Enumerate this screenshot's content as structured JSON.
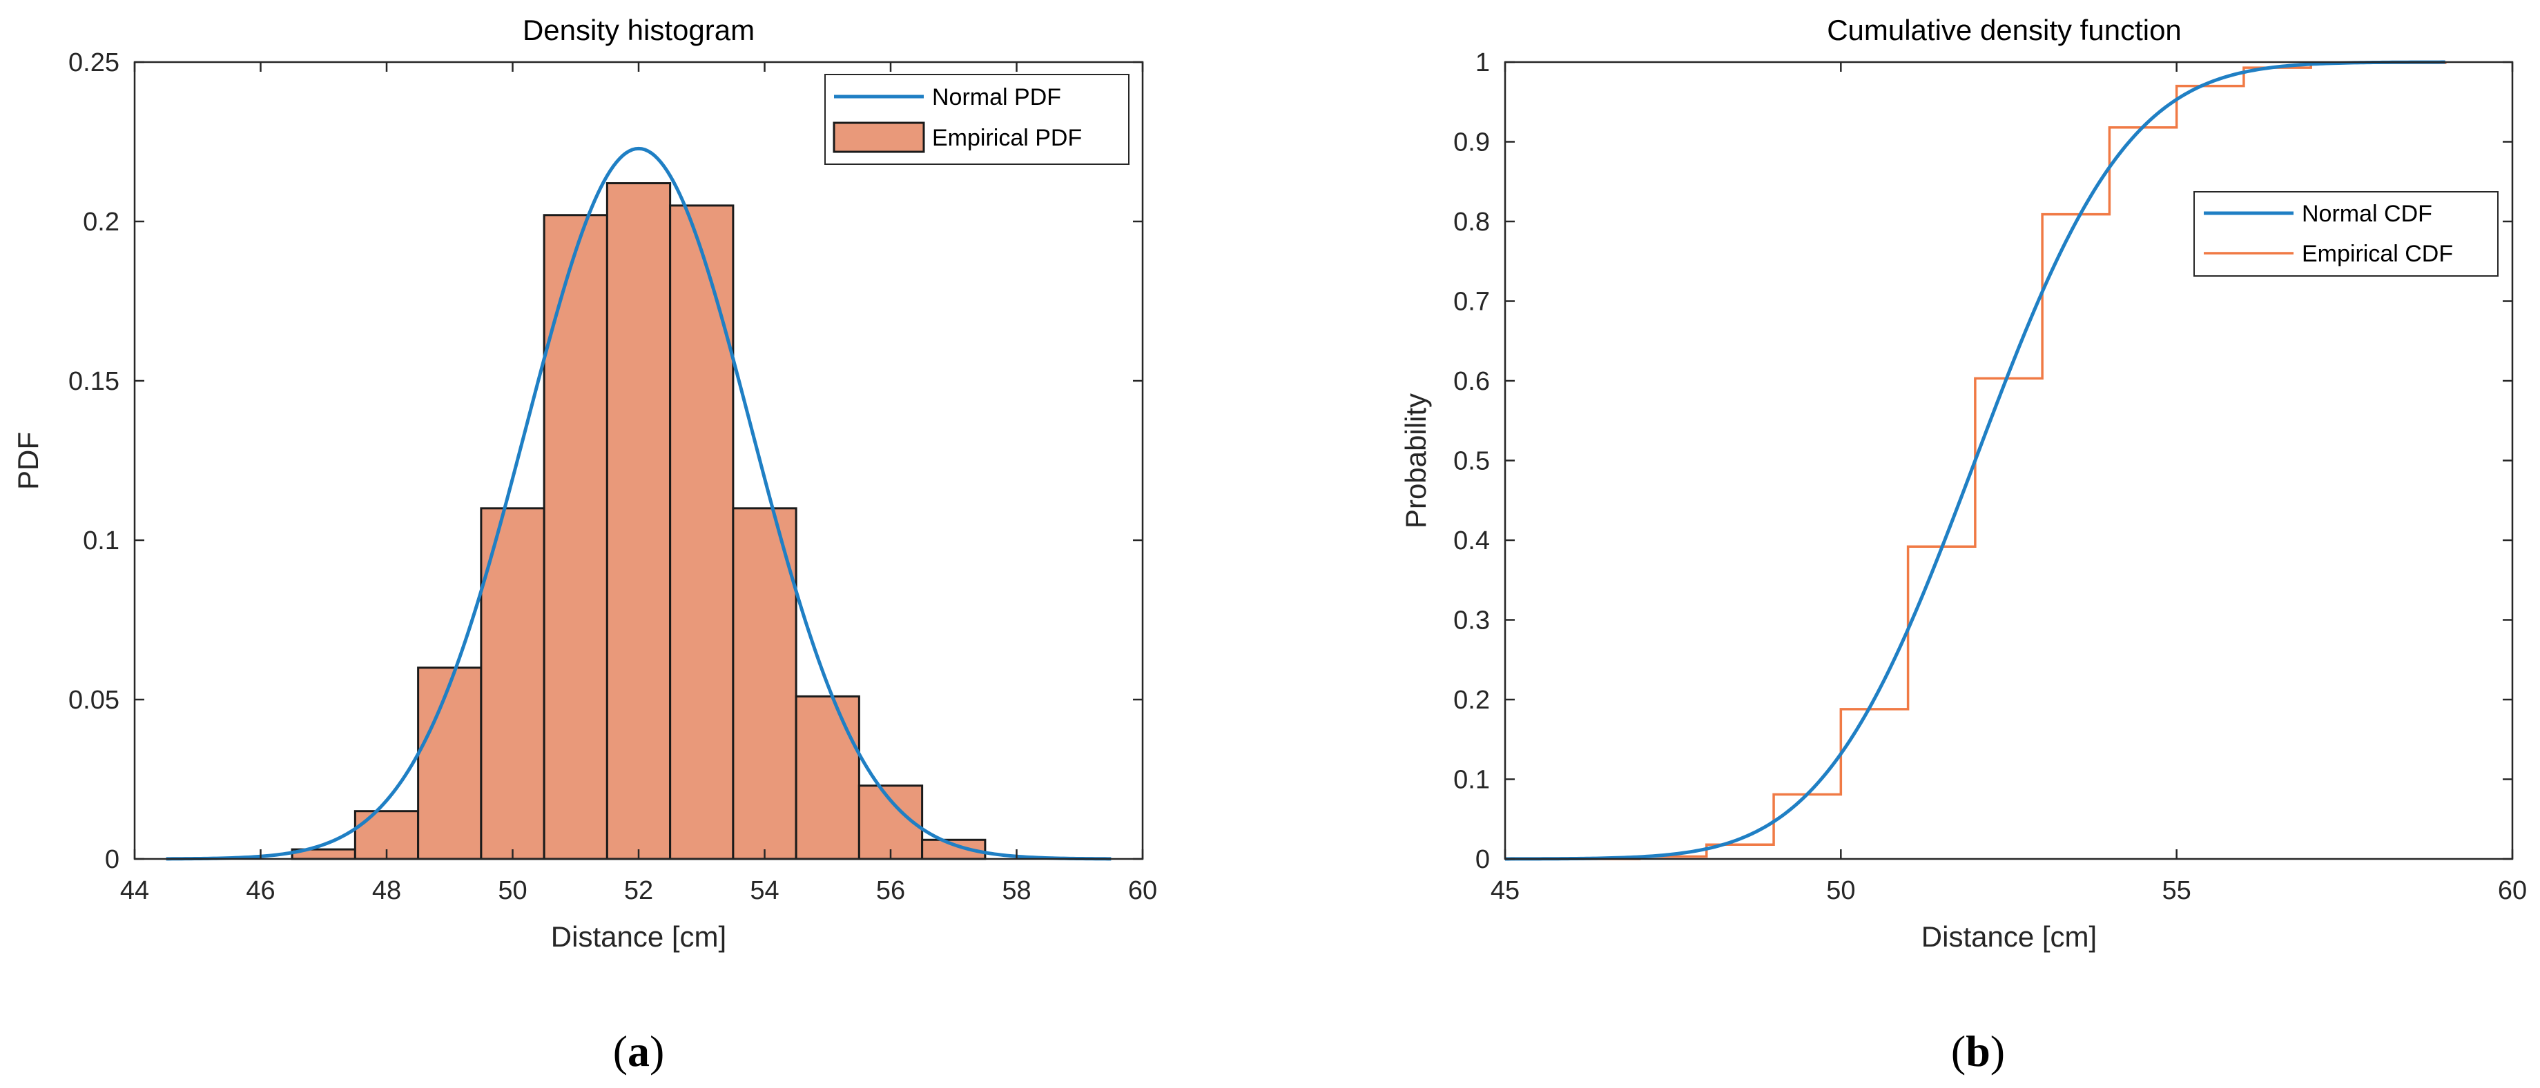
{
  "chart_data": [
    {
      "type": "bar",
      "panel": "a",
      "caption": {
        "open": "(",
        "letter": "a",
        "close": ")"
      },
      "title": "Density histogram",
      "xlabel": "Distance [cm]",
      "ylabel": "PDF",
      "xlim": [
        44,
        60
      ],
      "ylim": [
        0,
        0.25
      ],
      "xticks": [
        44,
        46,
        48,
        50,
        52,
        54,
        56,
        58,
        60
      ],
      "yticks": [
        0,
        0.05,
        0.1,
        0.15,
        0.2,
        0.25
      ],
      "xtick_labels": [
        "44",
        "46",
        "48",
        "50",
        "52",
        "54",
        "56",
        "58",
        "60"
      ],
      "ytick_labels": [
        "0",
        "0.05",
        "0.1",
        "0.15",
        "0.2",
        "0.25"
      ],
      "legend": {
        "placement": "top-right",
        "entries": [
          "Normal PDF",
          "Empirical PDF"
        ]
      },
      "colors": {
        "bar_fill": "#E9997A",
        "bar_edge": "#1A1A1A",
        "line": "#1F7FC4",
        "axis": "#262626"
      },
      "bins": [
        {
          "left": 46.5,
          "right": 47.5,
          "value": 0.003
        },
        {
          "left": 47.5,
          "right": 48.5,
          "value": 0.015
        },
        {
          "left": 48.5,
          "right": 49.5,
          "value": 0.06
        },
        {
          "left": 49.5,
          "right": 50.5,
          "value": 0.11
        },
        {
          "left": 50.5,
          "right": 51.5,
          "value": 0.202
        },
        {
          "left": 51.5,
          "right": 52.5,
          "value": 0.212
        },
        {
          "left": 52.5,
          "right": 53.5,
          "value": 0.205
        },
        {
          "left": 53.5,
          "right": 54.5,
          "value": 0.11
        },
        {
          "left": 54.5,
          "right": 55.5,
          "value": 0.051
        },
        {
          "left": 55.5,
          "right": 56.5,
          "value": 0.023
        },
        {
          "left": 56.5,
          "right": 57.5,
          "value": 0.006
        }
      ],
      "normal_fit": {
        "mean": 52.0,
        "sd": 1.79,
        "x_range": [
          44.5,
          59.5
        ]
      }
    },
    {
      "type": "line",
      "panel": "b",
      "caption": {
        "open": "(",
        "letter": "b",
        "close": ")"
      },
      "title": "Cumulative density function",
      "xlabel": "Distance [cm]",
      "ylabel": "Probability",
      "xlim": [
        45,
        60
      ],
      "ylim": [
        0,
        1
      ],
      "xticks": [
        45,
        50,
        55,
        60
      ],
      "yticks": [
        0,
        0.1,
        0.2,
        0.3,
        0.4,
        0.5,
        0.6,
        0.7,
        0.8,
        0.9,
        1
      ],
      "xtick_labels": [
        "45",
        "50",
        "55",
        "60"
      ],
      "ytick_labels": [
        "0",
        "0.1",
        "0.2",
        "0.3",
        "0.4",
        "0.5",
        "0.6",
        "0.7",
        "0.8",
        "0.9",
        "1"
      ],
      "legend": {
        "placement": "upper-right",
        "entries": [
          "Normal CDF",
          "Empirical CDF"
        ]
      },
      "colors": {
        "normal": "#1F7FC4",
        "empirical": "#F07A45",
        "axis": "#262626"
      },
      "normal_fit": {
        "mean": 52.0,
        "sd": 1.79,
        "x_range": [
          45,
          59
        ]
      },
      "empirical_steps": {
        "x": [
          45,
          47,
          48,
          49,
          50,
          51,
          52,
          53,
          54,
          55,
          56,
          57,
          59
        ],
        "y": [
          0,
          0.003,
          0.018,
          0.081,
          0.188,
          0.392,
          0.603,
          0.809,
          0.918,
          0.97,
          0.993,
          0.999,
          1.0
        ]
      }
    }
  ]
}
